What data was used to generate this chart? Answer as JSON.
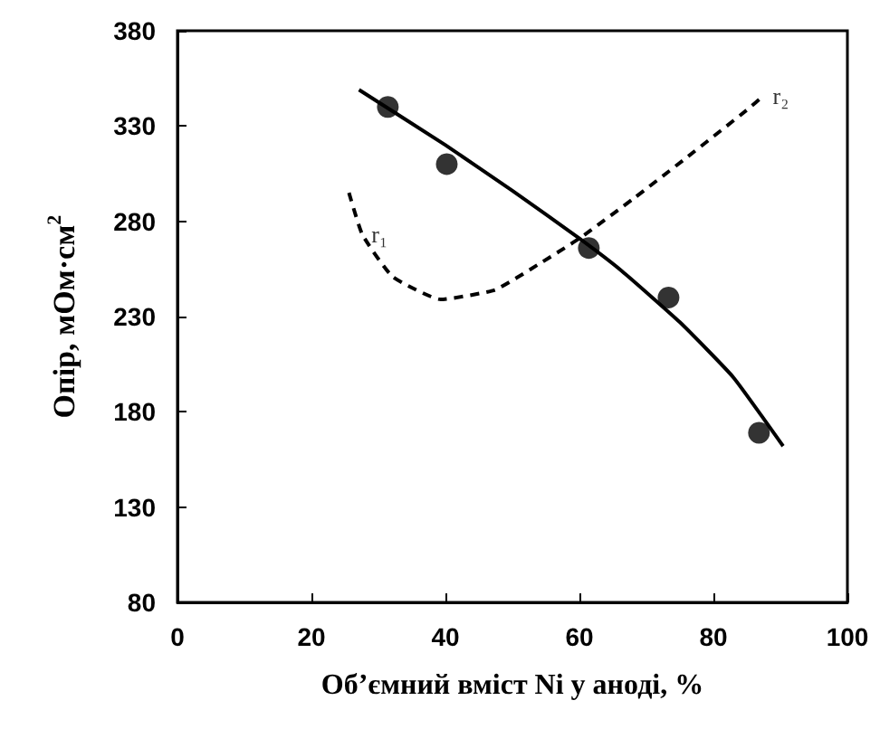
{
  "chart_data": {
    "type": "scatter",
    "xlabel": "Об’ємний вміст Ni у аноді, %",
    "ylabel": "Опір, мОм·см$^{2}$",
    "xlim": [
      0,
      100
    ],
    "xticks": [
      0,
      20,
      40,
      60,
      80,
      100
    ],
    "ylim": [
      80,
      380
    ],
    "yticks": [
      80,
      130,
      180,
      230,
      280,
      330,
      380
    ],
    "grid": false,
    "series": [
      {
        "color": "#000000",
        "marker": "circle",
        "x": [
          31.4,
          40.2,
          61.4,
          73.3,
          86.8
        ],
        "values": [
          340,
          310,
          266,
          240,
          169
        ]
      },
      {
        "type": "line",
        "color": "#000000",
        "marker": "none",
        "line_style": "solid",
        "x": [
          27.1,
          40,
          50,
          60,
          66.3,
          75,
          83,
          90.4
        ],
        "values": [
          349,
          320,
          296,
          271,
          254,
          227,
          198,
          162
        ]
      },
      {
        "type": "line",
        "color": "#000000",
        "marker": "none",
        "line_style": "dashed",
        "x": [
          25.6,
          27.6,
          32.1,
          39.3,
          47.4,
          53.7,
          60,
          68.1,
          76.2,
          85.2,
          87.5
        ],
        "values": [
          295,
          273,
          251,
          239,
          244,
          257,
          271,
          292,
          314,
          339,
          346
        ]
      }
    ],
    "annotations": [
      {
        "text": "r₁",
        "x": 27.6,
        "y": 273
      },
      {
        "text": "r₂",
        "x": 87.5,
        "y": 346
      }
    ]
  }
}
